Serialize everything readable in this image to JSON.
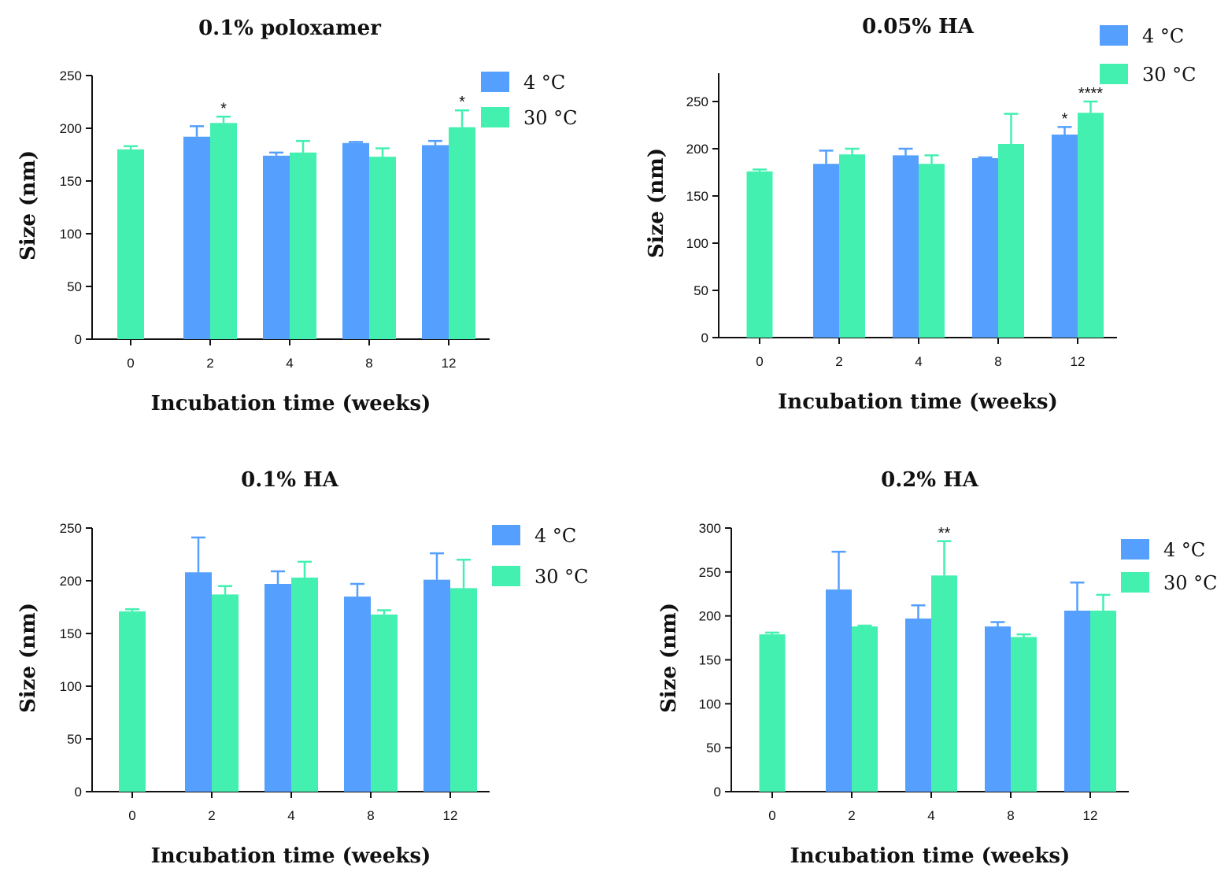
{
  "chart_data": [
    {
      "type": "bar",
      "title": "0.1% poloxamer",
      "xlabel": "Incubation time (weeks)",
      "ylabel": "Size (nm)",
      "ylim": [
        0,
        250
      ],
      "yticks": [
        0,
        50,
        100,
        150,
        200,
        250
      ],
      "categories": [
        "0",
        "2",
        "4",
        "8",
        "12"
      ],
      "series": [
        {
          "name": "4 °C",
          "color": "#559ffe",
          "values": [
            null,
            192,
            174,
            186,
            184
          ],
          "errors": [
            null,
            10,
            3,
            1,
            4
          ]
        },
        {
          "name": "30 °C",
          "color": "#43f0b0",
          "values": [
            180,
            205,
            177,
            173,
            201
          ],
          "errors": [
            3,
            6,
            11,
            8,
            16
          ]
        }
      ],
      "annotations": [
        {
          "category": "2",
          "series": "30 °C",
          "text": "*"
        },
        {
          "category": "12",
          "series": "30 °C",
          "text": "*"
        }
      ],
      "legend": "top-right"
    },
    {
      "type": "bar",
      "title": "0.05% HA",
      "xlabel": "Incubation time (weeks)",
      "ylabel": "Size (nm)",
      "ylim": [
        0,
        280
      ],
      "yticks": [
        0,
        50,
        100,
        150,
        200,
        250
      ],
      "categories": [
        "0",
        "2",
        "4",
        "8",
        "12"
      ],
      "series": [
        {
          "name": "4 °C",
          "color": "#559ffe",
          "values": [
            null,
            184,
            193,
            190,
            215
          ],
          "errors": [
            null,
            14,
            7,
            0,
            8
          ]
        },
        {
          "name": "30 °C",
          "color": "#43f0b0",
          "values": [
            176,
            194,
            184,
            205,
            238
          ],
          "errors": [
            2,
            6,
            9,
            32,
            12
          ]
        }
      ],
      "annotations": [
        {
          "category": "12",
          "series": "4 °C",
          "text": "*"
        },
        {
          "category": "12",
          "series": "30 °C",
          "text": "****"
        }
      ],
      "legend": "top-right"
    },
    {
      "type": "bar",
      "title": "0.1% HA",
      "xlabel": "Incubation time (weeks)",
      "ylabel": "Size (nm)",
      "ylim": [
        0,
        250
      ],
      "yticks": [
        0,
        50,
        100,
        150,
        200,
        250
      ],
      "categories": [
        "0",
        "2",
        "4",
        "8",
        "12"
      ],
      "series": [
        {
          "name": "4 °C",
          "color": "#559ffe",
          "values": [
            null,
            208,
            197,
            185,
            201
          ],
          "errors": [
            null,
            33,
            12,
            12,
            25
          ]
        },
        {
          "name": "30 °C",
          "color": "#43f0b0",
          "values": [
            171,
            187,
            203,
            168,
            193
          ],
          "errors": [
            2,
            8,
            15,
            4,
            27
          ]
        }
      ],
      "annotations": [],
      "legend": "top-right"
    },
    {
      "type": "bar",
      "title": "0.2% HA",
      "xlabel": "Incubation time (weeks)",
      "ylabel": "Size (nm)",
      "ylim": [
        0,
        300
      ],
      "yticks": [
        0,
        50,
        100,
        150,
        200,
        250,
        300
      ],
      "categories": [
        "0",
        "2",
        "4",
        "8",
        "12"
      ],
      "series": [
        {
          "name": "4 °C",
          "color": "#559ffe",
          "values": [
            null,
            230,
            197,
            188,
            206
          ],
          "errors": [
            null,
            43,
            15,
            5,
            32
          ]
        },
        {
          "name": "30 °C",
          "color": "#43f0b0",
          "values": [
            179,
            188,
            246,
            176,
            206
          ],
          "errors": [
            2,
            1,
            39,
            3,
            18
          ]
        }
      ],
      "annotations": [
        {
          "category": "4",
          "series": "30 °C",
          "text": "**"
        }
      ],
      "legend": "top-right"
    }
  ]
}
